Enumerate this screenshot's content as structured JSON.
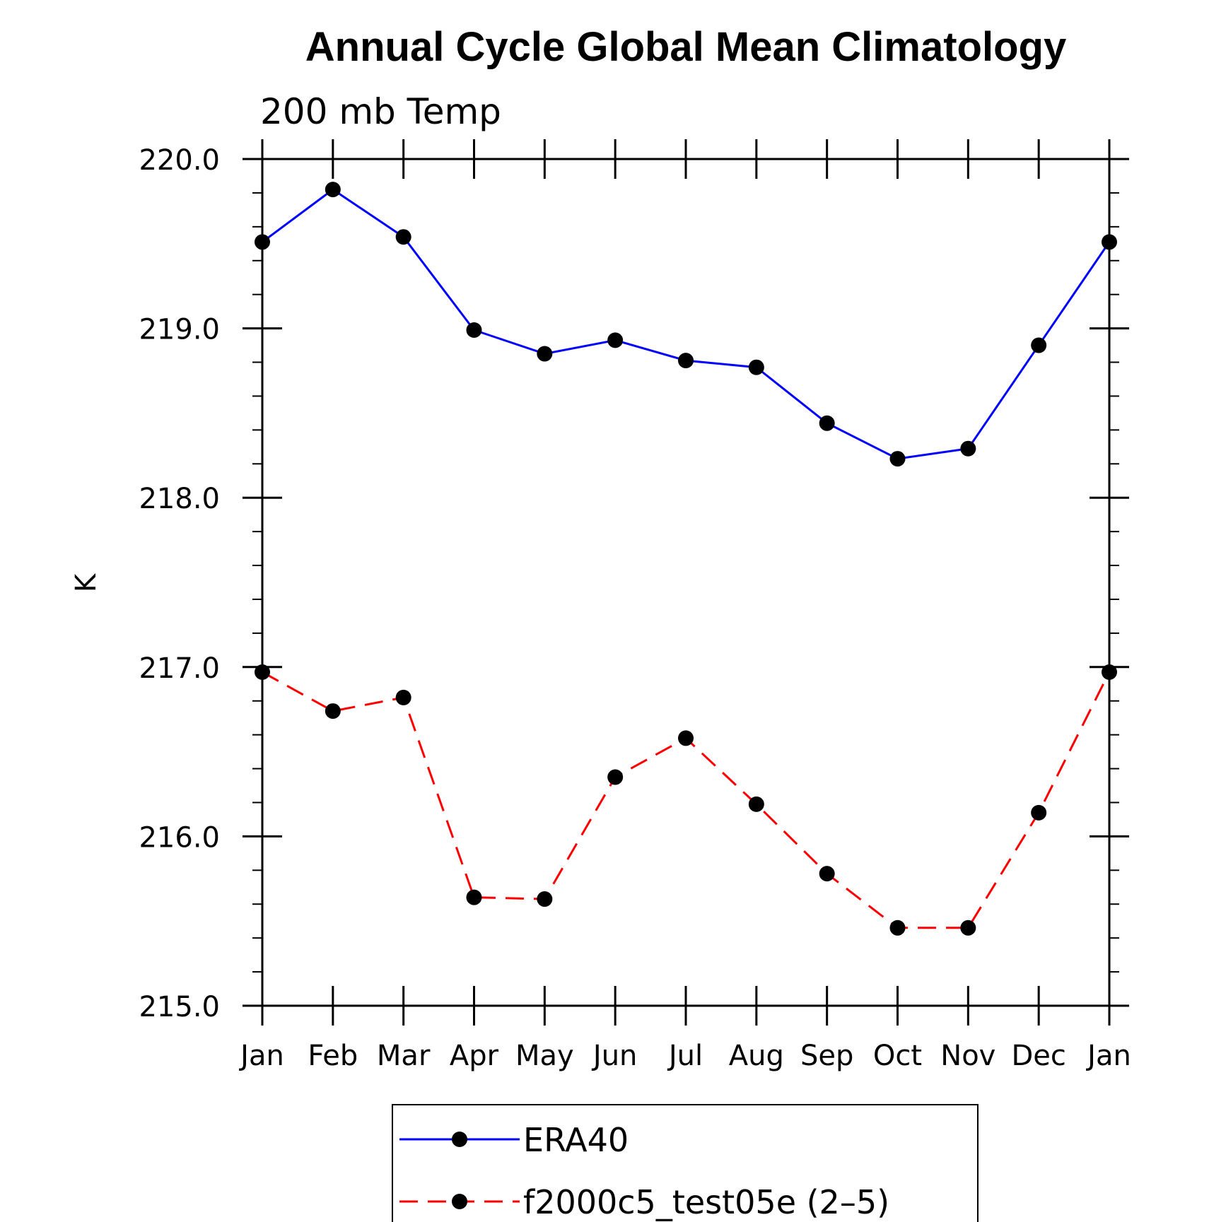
{
  "chart_data": {
    "type": "line",
    "title": "Annual Cycle Global Mean Climatology",
    "subtitle": "200 mb Temp",
    "ylabel": "K",
    "xlabel": "",
    "categories": [
      "Jan",
      "Feb",
      "Mar",
      "Apr",
      "May",
      "Jun",
      "Jul",
      "Aug",
      "Sep",
      "Oct",
      "Nov",
      "Dec",
      "Jan"
    ],
    "ylim": [
      215.0,
      220.0
    ],
    "yticks": [
      "215.0",
      "216.0",
      "217.0",
      "218.0",
      "219.0",
      "220.0"
    ],
    "grid": false,
    "legend_position": "bottom-center",
    "series": [
      {
        "name": "ERA40",
        "color": "#0000ff",
        "dash": "solid",
        "marker": "filled-circle",
        "values": [
          219.51,
          219.82,
          219.54,
          218.99,
          218.85,
          218.93,
          218.81,
          218.77,
          218.44,
          218.23,
          218.29,
          218.9,
          219.51
        ]
      },
      {
        "name": "f2000c5_test05e (2–5)",
        "color": "#ff0000",
        "dash": "dashed",
        "marker": "filled-circle",
        "values": [
          216.97,
          216.74,
          216.82,
          215.64,
          215.63,
          216.35,
          216.58,
          216.19,
          215.78,
          215.46,
          215.46,
          216.14,
          216.97
        ]
      }
    ]
  }
}
